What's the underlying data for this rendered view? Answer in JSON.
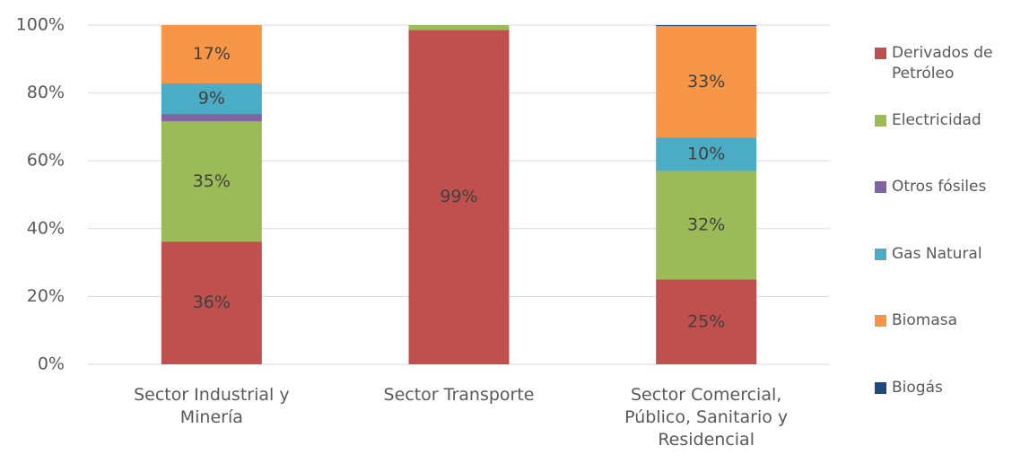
{
  "chart_data": {
    "type": "stacked_bar",
    "categories": [
      "Sector Industrial y Minería",
      "Sector Transporte",
      "Sector Comercial, Público, Sanitario y Residencial"
    ],
    "series": [
      {
        "name": "Derivados de Petróleo",
        "color": "#c0504d",
        "values": [
          36.2,
          98.6,
          25
        ],
        "value_labels": [
          "36%",
          "99%",
          "25%"
        ]
      },
      {
        "name": "Electricidad",
        "color": "#9bbb59",
        "values": [
          35.4,
          1.4,
          32
        ],
        "value_labels": [
          "35%",
          null,
          "32%"
        ]
      },
      {
        "name": "Otros fósiles",
        "color": "#8064a2",
        "values": [
          2.2,
          0,
          0
        ],
        "value_labels": [
          null,
          null,
          null
        ]
      },
      {
        "name": "Gas Natural",
        "color": "#4bacc6",
        "values": [
          9,
          0,
          9.8
        ],
        "value_labels": [
          "9%",
          null,
          "10%"
        ]
      },
      {
        "name": "Biomasa",
        "color": "#f79646",
        "values": [
          17.2,
          0,
          32.9
        ],
        "value_labels": [
          "17%",
          null,
          "33%"
        ]
      },
      {
        "name": "Biogás",
        "color": "#1f497d",
        "values": [
          0,
          0,
          0.3
        ],
        "value_labels": [
          null,
          null,
          null
        ]
      }
    ],
    "ylim": [
      0,
      100
    ],
    "yticks": [
      {
        "value": 0,
        "label": "0%"
      },
      {
        "value": 20,
        "label": "20%"
      },
      {
        "value": 40,
        "label": "40%"
      },
      {
        "value": 60,
        "label": "60%"
      },
      {
        "value": 80,
        "label": "80%"
      },
      {
        "value": 100,
        "label": "100%"
      }
    ],
    "grid": true,
    "legend": "right"
  }
}
